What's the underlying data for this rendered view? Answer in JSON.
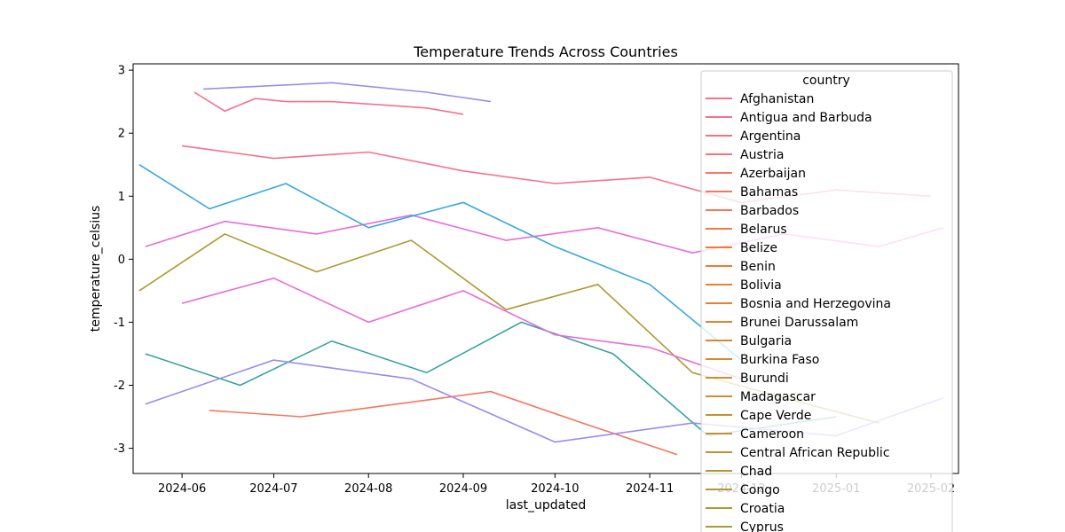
{
  "chart_data": {
    "type": "line",
    "title": "Temperature Trends Across Countries",
    "xlabel": "last_updated",
    "ylabel": "temperature_celsius",
    "x_ticks": [
      "2024-06",
      "2024-07",
      "2024-08",
      "2024-09",
      "2024-10",
      "2024-11",
      "2024-12",
      "2025-01",
      "2025-02"
    ],
    "x_range": [
      "2024-05-16",
      "2025-02-10"
    ],
    "ylim": [
      -3.4,
      3.1
    ],
    "y_ticks": [
      -3,
      -2,
      -1,
      0,
      1,
      2,
      3
    ],
    "grid": false,
    "legend": {
      "title": "country",
      "placement": "upper-right",
      "entries": [
        {
          "name": "Afghanistan",
          "color": "#f77189"
        },
        {
          "name": "Antigua and Barbuda",
          "color": "#f7718a"
        },
        {
          "name": "Argentina",
          "color": "#f77280"
        },
        {
          "name": "Austria",
          "color": "#f77375"
        },
        {
          "name": "Azerbaijan",
          "color": "#f7746a"
        },
        {
          "name": "Bahamas",
          "color": "#f7755e"
        },
        {
          "name": "Barbados",
          "color": "#f77653"
        },
        {
          "name": "Belarus",
          "color": "#f77846"
        },
        {
          "name": "Belize",
          "color": "#f57932"
        },
        {
          "name": "Benin",
          "color": "#ef7c32"
        },
        {
          "name": "Bolivia",
          "color": "#e98032"
        },
        {
          "name": "Bosnia and Herzegovina",
          "color": "#e38332"
        },
        {
          "name": "Brunei Darussalam",
          "color": "#de8532"
        },
        {
          "name": "Bulgaria",
          "color": "#d98832"
        },
        {
          "name": "Burkina Faso",
          "color": "#d58a32"
        },
        {
          "name": "Burundi",
          "color": "#d08c32"
        },
        {
          "name": "Madagascar",
          "color": "#cb8e32"
        },
        {
          "name": "Cape Verde",
          "color": "#c69031"
        },
        {
          "name": "Cameroon",
          "color": "#c29231"
        },
        {
          "name": "Central African Republic",
          "color": "#bd9431"
        },
        {
          "name": "Chad",
          "color": "#b89631"
        },
        {
          "name": "Congo",
          "color": "#b39831"
        },
        {
          "name": "Croatia",
          "color": "#ae9a31"
        },
        {
          "name": "Cyprus",
          "color": "#a99b31"
        }
      ]
    },
    "series": [
      {
        "color": "#f77189",
        "x": [
          "2024-06-05",
          "2024-06-15",
          "2024-06-25",
          "2024-07-05",
          "2024-07-20",
          "2024-08-05",
          "2024-08-20",
          "2024-09-01"
        ],
        "y": [
          2.65,
          2.35,
          2.55,
          2.5,
          2.5,
          2.45,
          2.4,
          2.3
        ]
      },
      {
        "color": "#9b8af0",
        "x": [
          "2024-06-08",
          "2024-07-20",
          "2024-08-20",
          "2024-09-10"
        ],
        "y": [
          2.7,
          2.8,
          2.65,
          2.5
        ]
      },
      {
        "color": "#f77189",
        "x": [
          "2024-06-01",
          "2024-07-01",
          "2024-08-01",
          "2024-09-01",
          "2024-10-01",
          "2024-11-01",
          "2024-12-01",
          "2025-01-01",
          "2025-02-01"
        ],
        "y": [
          1.8,
          1.6,
          1.7,
          1.4,
          1.2,
          1.3,
          0.9,
          1.1,
          1.0
        ]
      },
      {
        "color": "#e86cd8",
        "x": [
          "2024-05-20",
          "2024-06-15",
          "2024-07-15",
          "2024-08-15",
          "2024-09-15",
          "2024-10-15",
          "2024-11-15",
          "2024-12-15",
          "2025-01-15",
          "2025-02-05"
        ],
        "y": [
          0.2,
          0.6,
          0.4,
          0.7,
          0.3,
          0.5,
          0.1,
          0.4,
          0.2,
          0.5
        ]
      },
      {
        "color": "#36a8df",
        "x": [
          "2024-05-18",
          "2024-06-10",
          "2024-07-05",
          "2024-08-01",
          "2024-09-01",
          "2024-10-01",
          "2024-11-01",
          "2024-12-01"
        ],
        "y": [
          1.5,
          0.8,
          1.2,
          0.5,
          0.9,
          0.2,
          -0.4,
          -1.6
        ]
      },
      {
        "color": "#ae9a31",
        "x": [
          "2024-05-18",
          "2024-06-15",
          "2024-07-15",
          "2024-08-15",
          "2024-09-15",
          "2024-10-15",
          "2024-11-15",
          "2024-12-15",
          "2025-01-15"
        ],
        "y": [
          -0.5,
          0.4,
          -0.2,
          0.3,
          -0.8,
          -0.4,
          -1.8,
          -2.2,
          -2.6
        ]
      },
      {
        "color": "#f7755e",
        "x": [
          "2024-06-10",
          "2024-07-10",
          "2024-08-10",
          "2024-09-10",
          "2024-10-10",
          "2024-11-10"
        ],
        "y": [
          -2.4,
          -2.5,
          -2.3,
          -2.1,
          -2.6,
          -3.1
        ]
      },
      {
        "color": "#3ba3a0",
        "x": [
          "2024-05-20",
          "2024-06-20",
          "2024-07-20",
          "2024-08-20",
          "2024-09-20",
          "2024-10-20",
          "2024-11-20",
          "2025-01-01"
        ],
        "y": [
          -1.5,
          -2.0,
          -1.3,
          -1.8,
          -1.0,
          -1.5,
          -2.8,
          -2.5
        ]
      },
      {
        "color": "#9b8af0",
        "x": [
          "2024-05-20",
          "2024-07-01",
          "2024-08-15",
          "2024-10-01",
          "2024-11-15",
          "2025-01-01",
          "2025-02-05"
        ],
        "y": [
          -2.3,
          -1.6,
          -1.9,
          -2.9,
          -2.6,
          -2.8,
          -2.2
        ]
      },
      {
        "color": "#e86cd8",
        "x": [
          "2024-06-01",
          "2024-07-01",
          "2024-08-01",
          "2024-09-01",
          "2024-10-01",
          "2024-11-01",
          "2024-12-01"
        ],
        "y": [
          -0.7,
          -0.3,
          -1.0,
          -0.5,
          -1.2,
          -1.4,
          -1.9
        ]
      }
    ]
  }
}
